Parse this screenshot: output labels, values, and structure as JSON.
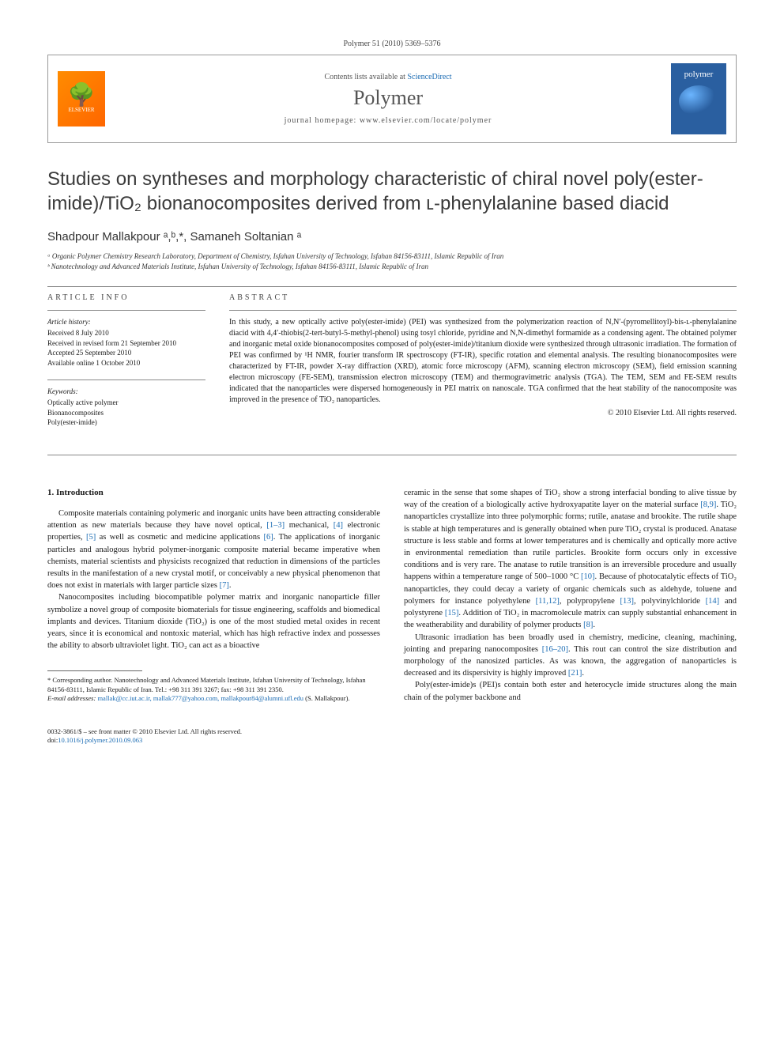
{
  "citation": "Polymer 51 (2010) 5369–5376",
  "header": {
    "contents_prefix": "Contents lists available at ",
    "contents_link": "ScienceDirect",
    "journal": "Polymer",
    "homepage_prefix": "journal homepage: ",
    "homepage_url": "www.elsevier.com/locate/polymer",
    "elsevier_label": "ELSEVIER",
    "cover_label": "polymer"
  },
  "title": "Studies on syntheses and morphology characteristic of chiral novel poly(ester-imide)/TiO₂ bionanocomposites derived from ʟ-phenylalanine based diacid",
  "authors": "Shadpour Mallakpour ᵃ,ᵇ,*, Samaneh Soltanian ᵃ",
  "affiliations": {
    "a": "ᵃ Organic Polymer Chemistry Research Laboratory, Department of Chemistry, Isfahan University of Technology, Isfahan 84156-83111, Islamic Republic of Iran",
    "b": "ᵇ Nanotechnology and Advanced Materials Institute, Isfahan University of Technology, Isfahan 84156-83111, Islamic Republic of Iran"
  },
  "article_info": {
    "head": "ARTICLE INFO",
    "history_label": "Article history:",
    "received": "Received 8 July 2010",
    "revised": "Received in revised form 21 September 2010",
    "accepted": "Accepted 25 September 2010",
    "online": "Available online 1 October 2010",
    "keywords_label": "Keywords:",
    "keywords": [
      "Optically active polymer",
      "Bionanocomposites",
      "Poly(ester-imide)"
    ]
  },
  "abstract": {
    "head": "ABSTRACT",
    "text": "In this study, a new optically active poly(ester-imide) (PEI) was synthesized from the polymerization reaction of N,N′-(pyromellitoyl)-bis-ʟ-phenylalanine diacid with 4,4′-thiobis(2-tert-butyl-5-methyl-phenol) using tosyl chloride, pyridine and N,N-dimethyl formamide as a condensing agent. The obtained polymer and inorganic metal oxide bionanocomposites composed of poly(ester-imide)/titanium dioxide were synthesized through ultrasonic irradiation. The formation of PEI was confirmed by ¹H NMR, fourier transform IR spectroscopy (FT-IR), specific rotation and elemental analysis. The resulting bionanocomposites were characterized by FT-IR, powder X-ray diffraction (XRD), atomic force microscopy (AFM), scanning electron microscopy (SEM), field emission scanning electron microscopy (FE-SEM), transmission electron microscopy (TEM) and thermogravimetric analysis (TGA). The TEM, SEM and FE-SEM results indicated that the nanoparticles were dispersed homogeneously in PEI matrix on nanoscale. TGA confirmed that the heat stability of the nanocomposite was improved in the presence of TiO₂ nanoparticles.",
    "copyright": "© 2010 Elsevier Ltd. All rights reserved."
  },
  "section1": {
    "head": "1. Introduction",
    "p1a": "Composite materials containing polymeric and inorganic units have been attracting considerable attention as new materials because they have novel optical, ",
    "r1": "[1–3]",
    "p1b": " mechanical, ",
    "r2": "[4]",
    "p1c": " electronic properties, ",
    "r3": "[5]",
    "p1d": " as well as cosmetic and medicine applications ",
    "r4": "[6]",
    "p1e": ". The applications of inorganic particles and analogous hybrid polymer-inorganic composite material became imperative when chemists, material scientists and physicists recognized that reduction in dimensions of the particles results in the manifestation of a new crystal motif, or conceivably a new physical phenomenon that does not exist in materials with larger particle sizes ",
    "r5": "[7]",
    "p1f": ".",
    "p2": "Nanocomposites including biocompatible polymer matrix and inorganic nanoparticle filler symbolize a novel group of composite biomaterials for tissue engineering, scaffolds and biomedical implants and devices. Titanium dioxide (TiO₂) is one of the most studied metal oxides in recent years, since it is economical and nontoxic material, which has high refractive index and possesses the ability to absorb ultraviolet light. TiO₂ can act as a bioactive",
    "p3a": "ceramic in the sense that some shapes of TiO₂ show a strong interfacial bonding to alive tissue by way of the creation of a biologically active hydroxyapatite layer on the material surface ",
    "r6": "[8,9]",
    "p3b": ". TiO₂ nanoparticles crystallize into three polymorphic forms; rutile, anatase and brookite. The rutile shape is stable at high temperatures and is generally obtained when pure TiO₂ crystal is produced. Anatase structure is less stable and forms at lower temperatures and is chemically and optically more active in environmental remediation than rutile particles. Brookite form occurs only in excessive conditions and is very rare. The anatase to rutile transition is an irreversible procedure and usually happens within a temperature range of 500–1000 °C ",
    "r7": "[10]",
    "p3c": ". Because of photocatalytic effects of TiO₂ nanoparticles, they could decay a variety of organic chemicals such as aldehyde, toluene and polymers for instance polyethylene ",
    "r8": "[11,12]",
    "p3d": ", polypropylene ",
    "r9": "[13]",
    "p3e": ", polyvinylchloride ",
    "r10": "[14]",
    "p3f": " and polystyrene ",
    "r11": "[15]",
    "p3g": ". Addition of TiO₂ in macromolecule matrix can supply substantial enhancement in the weatherability and durability of polymer products ",
    "r12": "[8]",
    "p3h": ".",
    "p4a": "Ultrasonic irradiation has been broadly used in chemistry, medicine, cleaning, machining, jointing and preparing nanocomposites ",
    "r13": "[16–20]",
    "p4b": ". This rout can control the size distribution and morphology of the nanosized particles. As was known, the aggregation of nanoparticles is decreased and its dispersivity is highly improved ",
    "r14": "[21]",
    "p4c": ".",
    "p5": "Poly(ester-imide)s (PEI)s contain both ester and heterocycle imide structures along the main chain of the polymer backbone and"
  },
  "footnote": {
    "corr": "* Corresponding author. Nanotechnology and Advanced Materials Institute, Isfahan University of Technology, Isfahan 84156-83111, Islamic Republic of Iran. Tel.: +98 311 391 3267; fax: +98 311 391 2350.",
    "email_label": "E-mail addresses: ",
    "emails": "mallak@cc.iut.ac.ir, mallak777@yahoo.com, mallakpour84@alumni.ufl.edu",
    "email_name": " (S. Mallakpour)."
  },
  "footer": {
    "issn": "0032-3861/$ – see front matter © 2010 Elsevier Ltd. All rights reserved.",
    "doi_prefix": "doi:",
    "doi": "10.1016/j.polymer.2010.09.063"
  }
}
